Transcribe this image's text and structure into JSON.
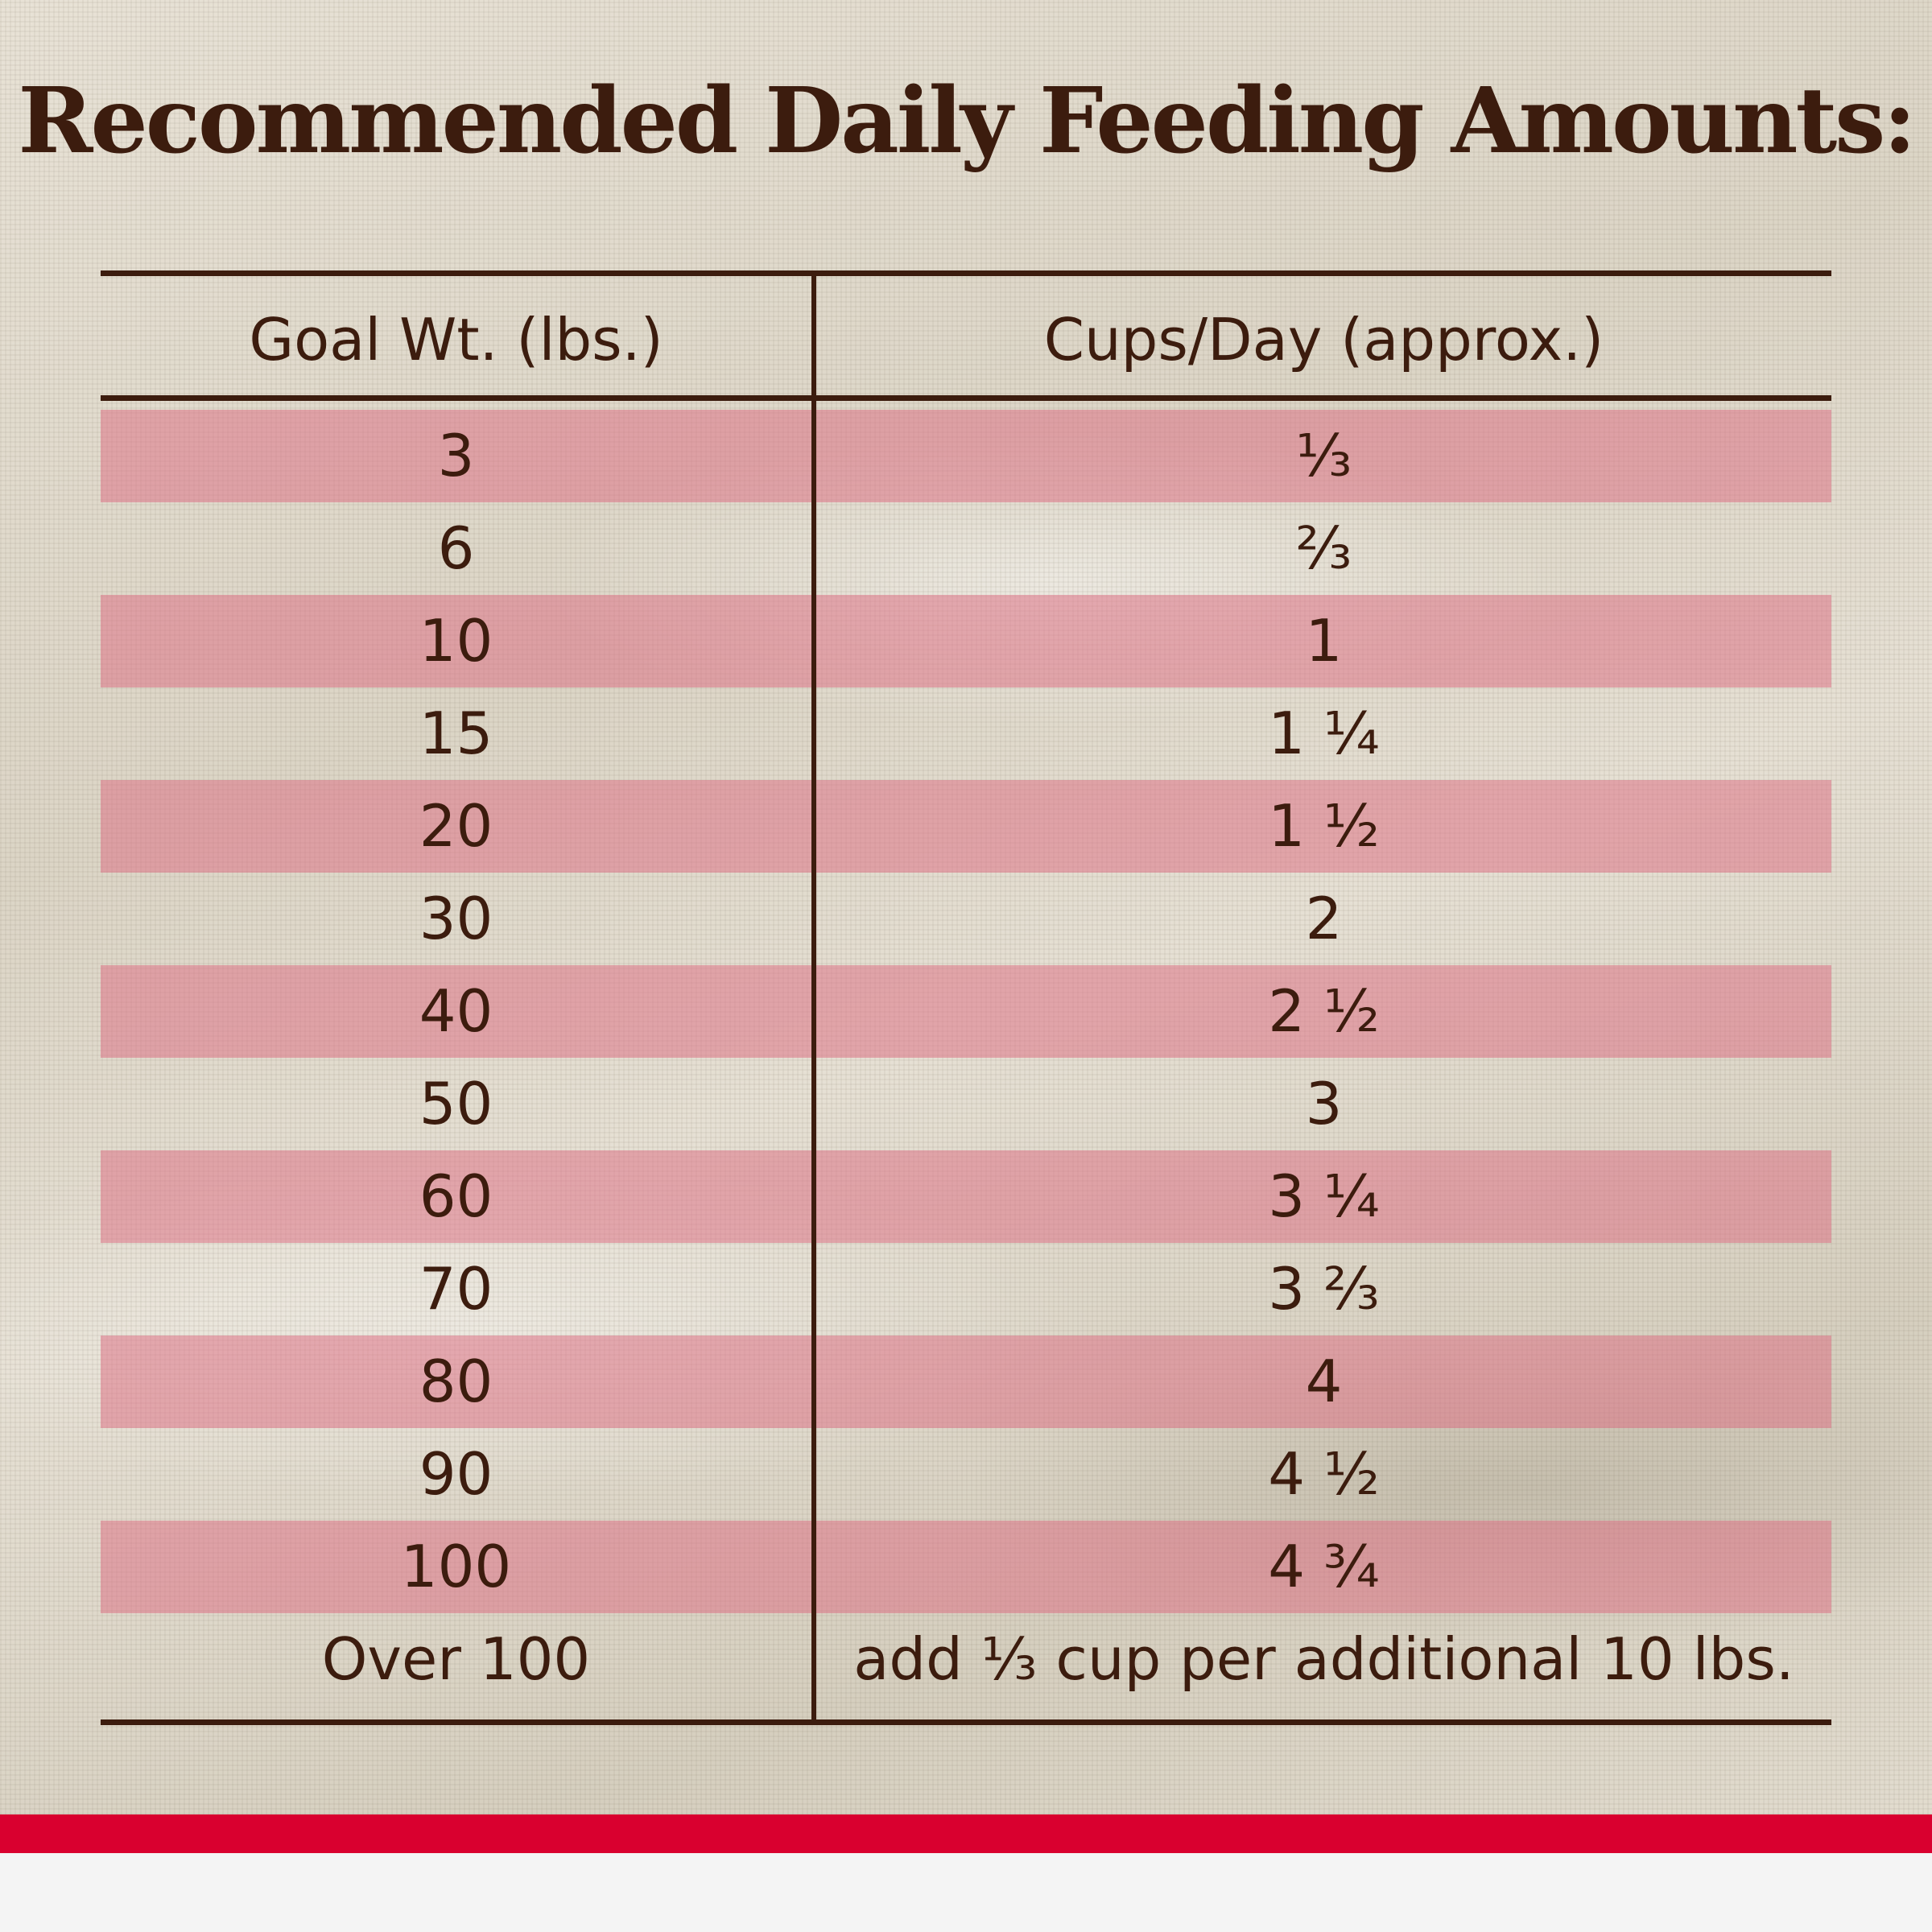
{
  "title": "Recommended Daily Feeding Amounts:",
  "table": {
    "headers": {
      "left": "Goal Wt. (lbs.)",
      "right": "Cups/Day (approx.)"
    },
    "rows": [
      {
        "weight": "3",
        "cups": "⅓"
      },
      {
        "weight": "6",
        "cups": "⅔"
      },
      {
        "weight": "10",
        "cups": "1"
      },
      {
        "weight": "15",
        "cups": "1 ¼"
      },
      {
        "weight": "20",
        "cups": "1 ½"
      },
      {
        "weight": "30",
        "cups": "2"
      },
      {
        "weight": "40",
        "cups": "2 ½"
      },
      {
        "weight": "50",
        "cups": "3"
      },
      {
        "weight": "60",
        "cups": "3 ¼"
      },
      {
        "weight": "70",
        "cups": "3 ⅔"
      },
      {
        "weight": "80",
        "cups": "4"
      },
      {
        "weight": "90",
        "cups": "4 ½"
      },
      {
        "weight": "100",
        "cups": "4 ¾"
      },
      {
        "weight": "Over 100",
        "cups": "add ⅓ cup per additional 10 lbs."
      }
    ]
  },
  "colors": {
    "text": "#3c1c0e",
    "stripe": "#dc6e82",
    "accent_band": "#d9002f",
    "footer": "#f4f4f4"
  }
}
